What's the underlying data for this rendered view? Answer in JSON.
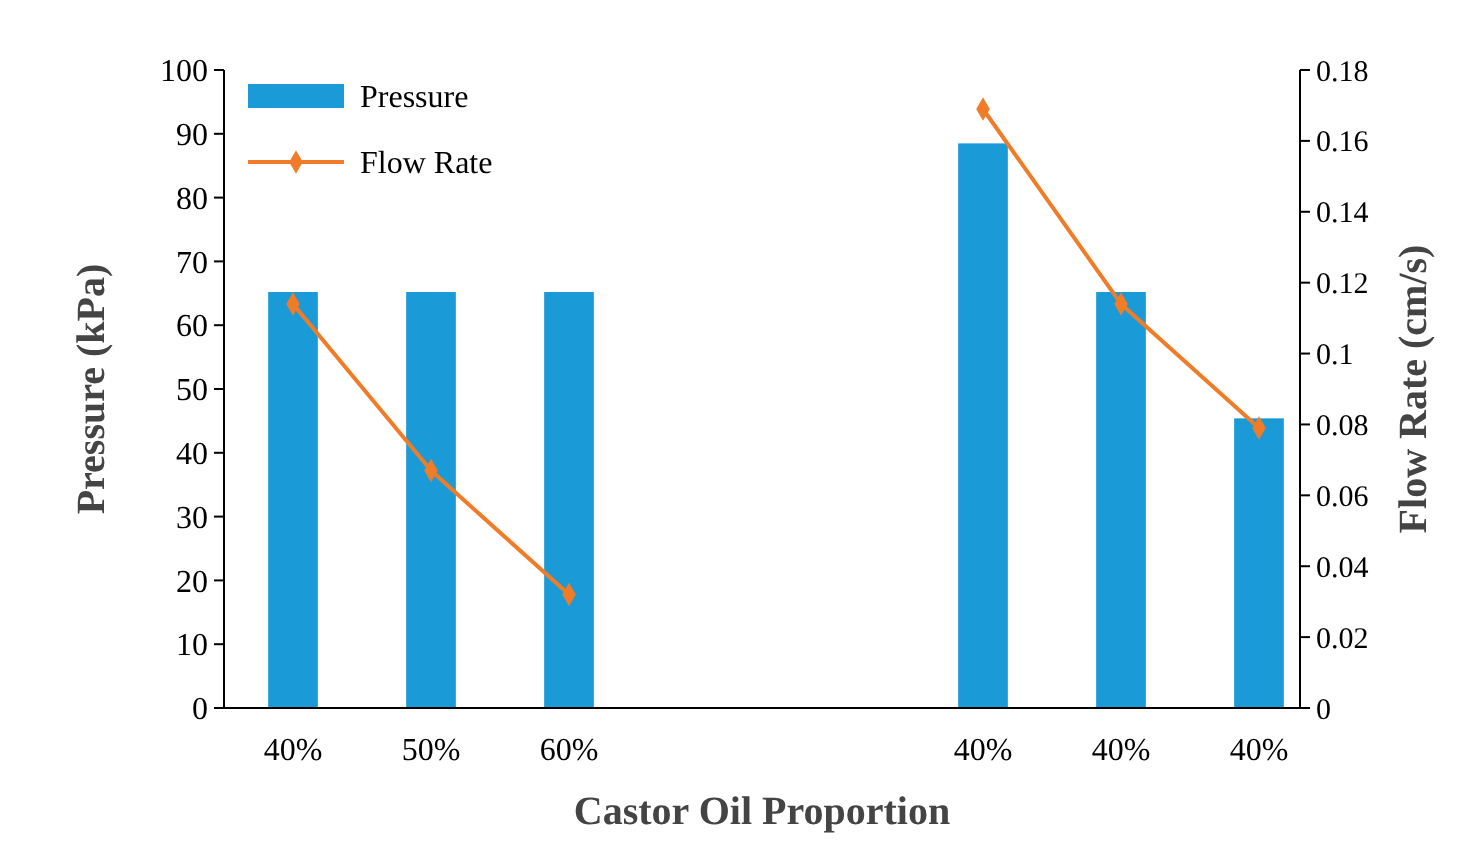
{
  "chart_data": {
    "type": "bar",
    "categories": [
      "40%",
      "50%",
      "60%",
      null,
      null,
      "40%",
      "40%",
      "40%"
    ],
    "series": [
      {
        "name": "Pressure",
        "color": "#1a9bd7",
        "values": [
          65.2,
          65.2,
          65.2,
          null,
          null,
          88.5,
          65.2,
          45.4
        ]
      },
      {
        "name": "Flow Rate",
        "type": "line",
        "axis": "y2",
        "color": "#f07c28",
        "marker": "diamond",
        "values": [
          0.114,
          0.067,
          0.032,
          null,
          null,
          0.169,
          0.114,
          0.079
        ]
      }
    ],
    "xlabel": "Castor Oil Proportion",
    "ylabel": "Pressure (kPa)",
    "y2label": "Flow Rate (cm/s)",
    "ylim": [
      0,
      100
    ],
    "yticks": [
      0,
      10,
      20,
      30,
      40,
      50,
      60,
      70,
      80,
      90,
      100
    ],
    "y2lim": [
      0,
      0.18
    ],
    "y2ticks": [
      0,
      0.02,
      0.04,
      0.06,
      0.08,
      0.1,
      0.12,
      0.14,
      0.16,
      0.18
    ],
    "legend": "top left",
    "grid": false
  }
}
